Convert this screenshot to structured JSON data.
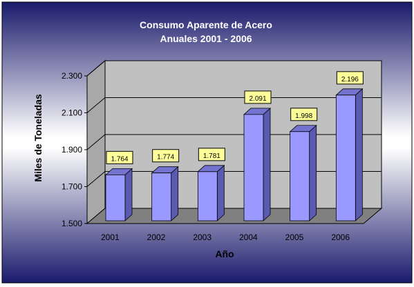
{
  "chart_data": {
    "type": "bar",
    "title": "Consumo Aparente de Acero",
    "subtitle": "Anuales 2001 - 2006",
    "xlabel": "Año",
    "ylabel": "Miles de Toneladas",
    "categories": [
      "2001",
      "2002",
      "2003",
      "2004",
      "2005",
      "2006"
    ],
    "values": [
      1764,
      1774,
      1781,
      2091,
      1998,
      2196
    ],
    "data_labels": [
      "1.764",
      "1.774",
      "1.781",
      "2.091",
      "1.998",
      "2.196"
    ],
    "y_ticks": [
      1500,
      1700,
      1900,
      2100,
      2300
    ],
    "y_tick_labels": [
      "1.500",
      "1.700",
      "1.900",
      "2.100",
      "2.300"
    ],
    "ylim": [
      1500,
      2300
    ],
    "grid": true,
    "legend": "none",
    "style": "3d-column",
    "colors": {
      "bar_front": "#9999ff",
      "bar_side": "#5a5ab0",
      "bar_top": "#7474d0",
      "plot_wall": "#c0c0c0",
      "plot_floor": "#808080",
      "label_box": "#ffff99",
      "background_dark": "#1c1c6e",
      "background_light": "#ffffff"
    }
  }
}
